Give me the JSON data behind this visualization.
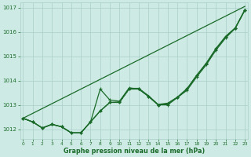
{
  "bg_color": "#ceeae4",
  "grid_color": "#a8cfc8",
  "line_color": "#1a6b2a",
  "xlabel": "Graphe pression niveau de la mer (hPa)",
  "xlabel_color": "#1a6b2a",
  "tick_color": "#1a6b2a",
  "ylim": [
    1011.6,
    1017.2
  ],
  "xlim": [
    -0.3,
    23.3
  ],
  "yticks": [
    1012,
    1013,
    1014,
    1015,
    1016,
    1017
  ],
  "xticks": [
    0,
    1,
    2,
    3,
    4,
    5,
    6,
    7,
    8,
    9,
    10,
    11,
    12,
    13,
    14,
    15,
    16,
    17,
    18,
    19,
    20,
    21,
    22,
    23
  ],
  "line_straight": [
    1012.45,
    1017.05
  ],
  "line_smooth1": [
    1012.45,
    1012.3,
    1012.05,
    1012.2,
    1012.1,
    1011.85,
    1011.85,
    1012.3,
    1012.75,
    1013.1,
    1013.1,
    1013.65,
    1013.65,
    1013.35,
    1013.0,
    1013.05,
    1013.3,
    1013.65,
    1014.2,
    1014.7,
    1015.3,
    1015.8,
    1016.15,
    1016.9
  ],
  "line_smooth2": [
    1012.45,
    1012.3,
    1012.05,
    1012.2,
    1012.1,
    1011.85,
    1011.85,
    1012.3,
    1012.75,
    1013.1,
    1013.1,
    1013.65,
    1013.65,
    1013.35,
    1013.0,
    1013.05,
    1013.3,
    1013.65,
    1014.2,
    1014.7,
    1015.3,
    1015.8,
    1016.15,
    1016.9
  ],
  "line_wavy": [
    1012.45,
    1012.3,
    1012.05,
    1012.2,
    1012.1,
    1011.85,
    1011.85,
    1012.3,
    1013.65,
    1013.2,
    1013.15,
    1013.7,
    1013.65,
    1013.35,
    1013.0,
    1013.0,
    1013.3,
    1013.6,
    1014.15,
    1014.65,
    1015.25,
    1015.75,
    1016.15,
    1016.9
  ],
  "line_dotted": [
    1012.45,
    1012.3,
    1012.05,
    1012.2,
    1012.1,
    1011.85,
    1011.85,
    1012.3,
    1012.75,
    1013.1,
    1013.1,
    1013.65,
    1013.65,
    1013.35,
    1013.0,
    1013.05,
    1013.3,
    1013.65,
    1014.2,
    1014.7,
    1015.3,
    1015.8,
    1016.15,
    1016.9
  ]
}
